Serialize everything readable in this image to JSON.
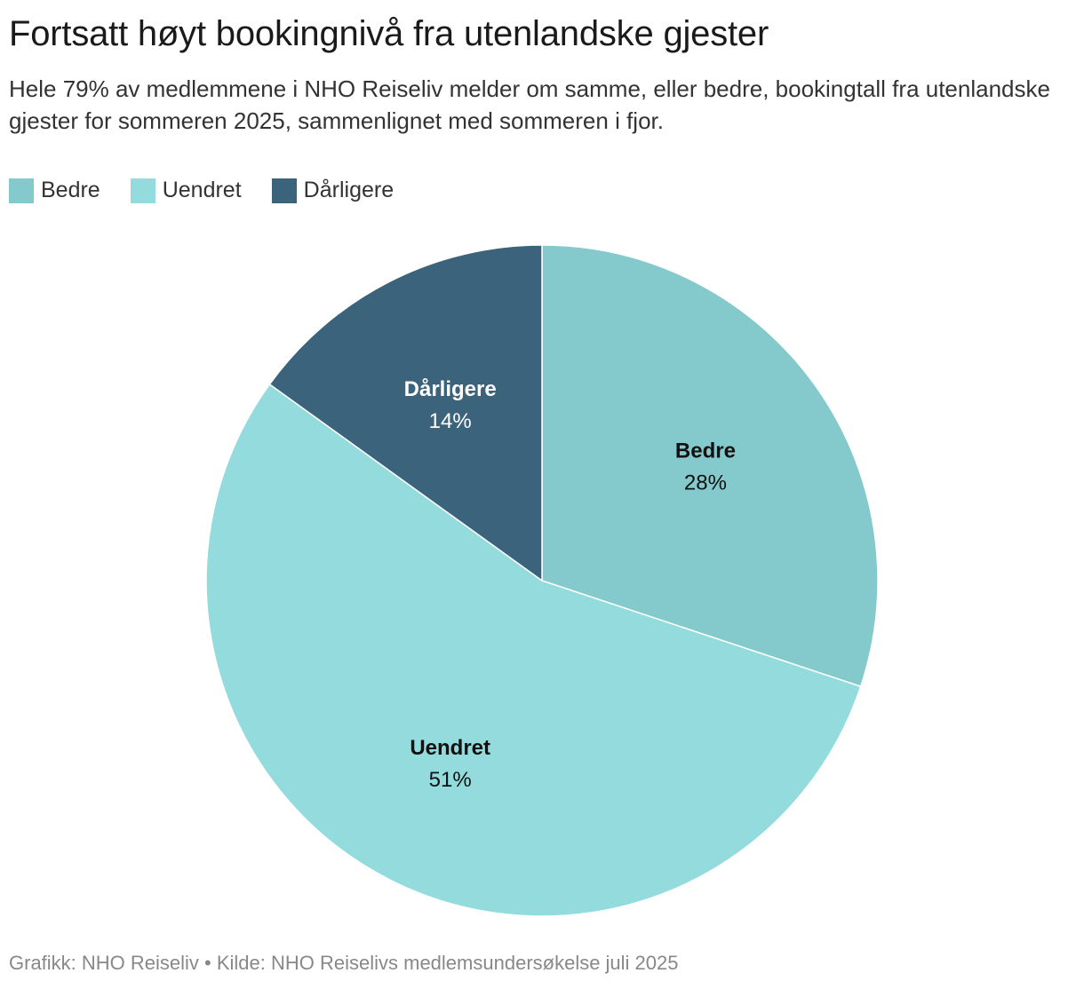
{
  "title": "Fortsatt høyt bookingnivå fra utenlandske gjester",
  "subtitle": "Hele 79% av medlemmene i NHO Reiseliv melder om samme, eller bedre, bookingtall fra utenlandske gjester for sommeren 2025, sammenlignet med sommeren i fjor.",
  "source": "Grafikk: NHO Reiseliv • Kilde: NHO Reiselivs medlemsundersøkelse juli 2025",
  "legend": [
    {
      "label": "Bedre",
      "color": "#84c9cb"
    },
    {
      "label": "Uendret",
      "color": "#93dbdd"
    },
    {
      "label": "Dårligere",
      "color": "#3b637b"
    }
  ],
  "chart_data": {
    "type": "pie",
    "legend_position": "top-left",
    "unit": "%",
    "slices": [
      {
        "label": "Bedre",
        "value": 28,
        "value_label": "28%",
        "color": "#84c9cb",
        "text_color": "#111111"
      },
      {
        "label": "Uendret",
        "value": 51,
        "value_label": "51%",
        "color": "#93dbdd",
        "text_color": "#111111"
      },
      {
        "label": "Dårligere",
        "value": 14,
        "value_label": "14%",
        "color": "#3b637b",
        "text_color": "#ffffff"
      }
    ]
  }
}
